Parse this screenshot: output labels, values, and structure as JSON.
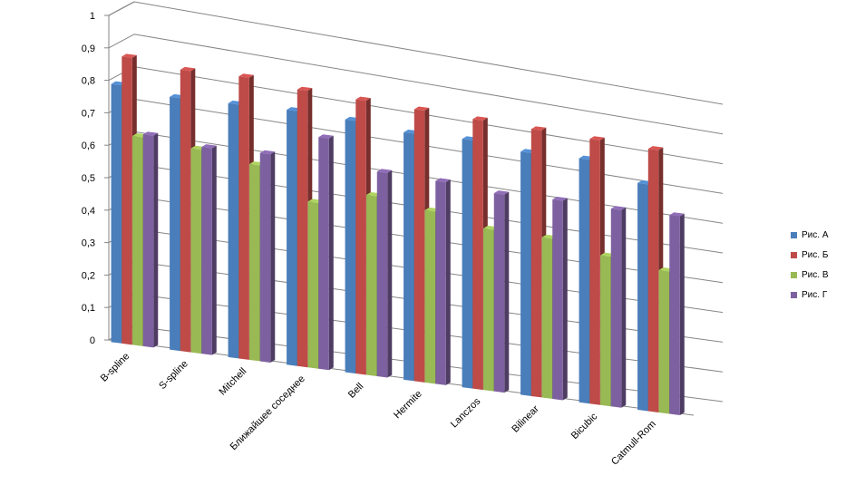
{
  "chart_data": {
    "type": "bar",
    "categories": [
      "B-spline",
      "S-spline",
      "Mitchell",
      "Ближайшее соседнее",
      "Bell",
      "Hermite",
      "Lanczos",
      "Bilinear",
      "Bicubic",
      "Catmull-Rom"
    ],
    "series": [
      {
        "name": "Рис. А",
        "color": "#4a7ebb",
        "values": [
          0.79,
          0.78,
          0.79,
          0.8,
          0.8,
          0.79,
          0.8,
          0.79,
          0.8,
          0.75
        ]
      },
      {
        "name": "Рис. Б",
        "color": "#be4b48",
        "values": [
          0.88,
          0.87,
          0.88,
          0.87,
          0.87,
          0.87,
          0.87,
          0.87,
          0.87,
          0.87
        ]
      },
      {
        "name": "Рис. В",
        "color": "#98b954",
        "values": [
          0.64,
          0.63,
          0.61,
          0.52,
          0.57,
          0.55,
          0.52,
          0.52,
          0.49,
          0.47
        ]
      },
      {
        "name": "Рис. Г",
        "color": "#7d60a0",
        "values": [
          0.65,
          0.64,
          0.65,
          0.73,
          0.65,
          0.65,
          0.64,
          0.65,
          0.65,
          0.66
        ]
      }
    ],
    "y_ticks": [
      "0",
      "0,1",
      "0,2",
      "0,3",
      "0,4",
      "0,5",
      "0,6",
      "0,7",
      "0,8",
      "0,9",
      "1"
    ],
    "ylim": [
      0,
      1
    ],
    "grid": true,
    "legend_position": "right",
    "title": "",
    "xlabel": "",
    "ylabel": ""
  }
}
